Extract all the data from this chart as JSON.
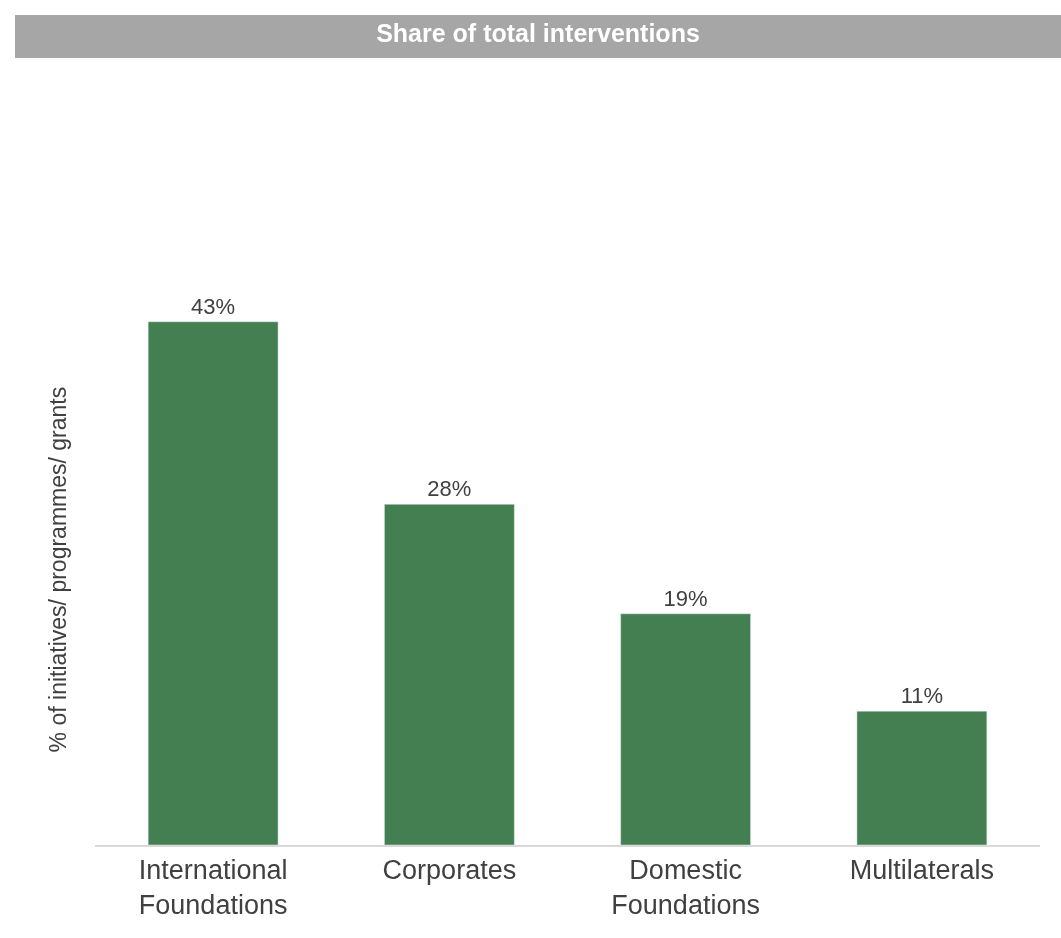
{
  "chart_data": {
    "type": "bar",
    "title": "Share of total interventions",
    "ylabel": "% of initiatives/ programmes/ grants",
    "categories": [
      "International Foundations",
      "Corporates",
      "Domestic Foundations",
      "Multilaterals"
    ],
    "values": [
      43,
      28,
      19,
      11
    ],
    "value_labels": [
      "43%",
      "28%",
      "19%",
      "11%"
    ],
    "color": "#437f50"
  }
}
